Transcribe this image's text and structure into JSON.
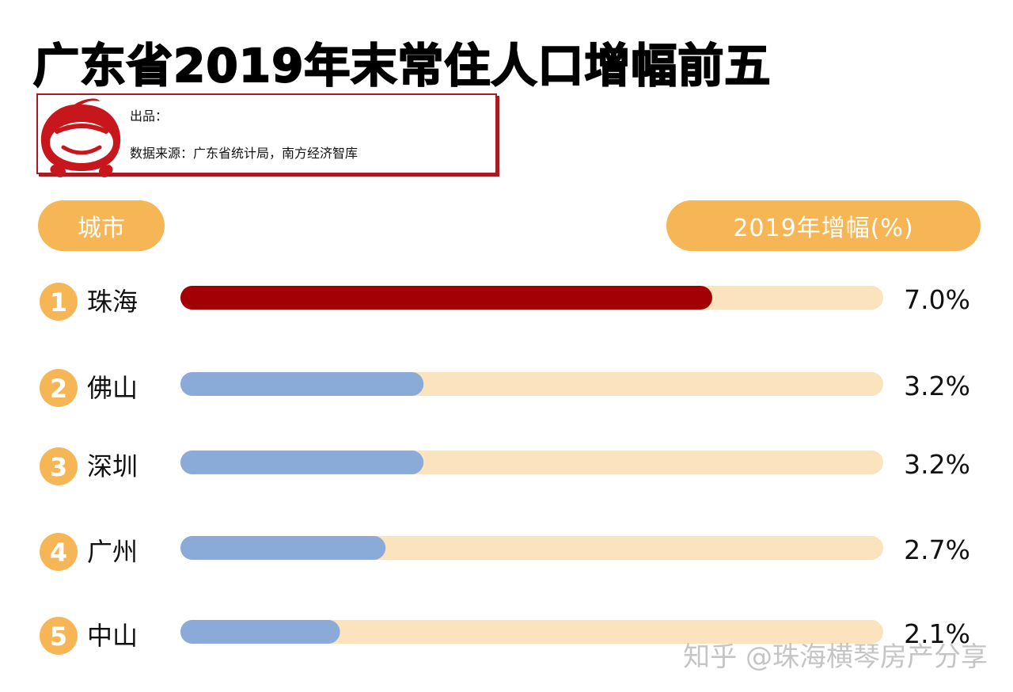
{
  "title": "广东省2019年末常住人口增幅前五",
  "info": {
    "producer_label": "出品：",
    "source_line": "数据来源：广东省统计局，南方经济智库"
  },
  "headers": {
    "city": "城市",
    "growth": "2019年增幅(%)"
  },
  "watermark": "知乎 @珠海横琴房产分享",
  "colors": {
    "accent": "#f7b655",
    "track": "#fbe3bd",
    "highlight_bar": "#a30005",
    "normal_bar": "#8aaad8",
    "badge": "#f7b655",
    "brand_red": "#a51c22"
  },
  "icons": {
    "mascot": "red-mascot-logo"
  },
  "chart_data": {
    "type": "bar",
    "orientation": "horizontal",
    "categories": [
      "珠海",
      "佛山",
      "深圳",
      "广州",
      "中山"
    ],
    "ranks": [
      "1",
      "2",
      "3",
      "4",
      "5"
    ],
    "values": [
      7.0,
      3.2,
      3.2,
      2.7,
      2.1
    ],
    "value_labels": [
      "7.0%",
      "3.2%",
      "3.2%",
      "2.7%",
      "2.1%"
    ],
    "unit": "%",
    "highlight_index": 0,
    "grid": false
  }
}
